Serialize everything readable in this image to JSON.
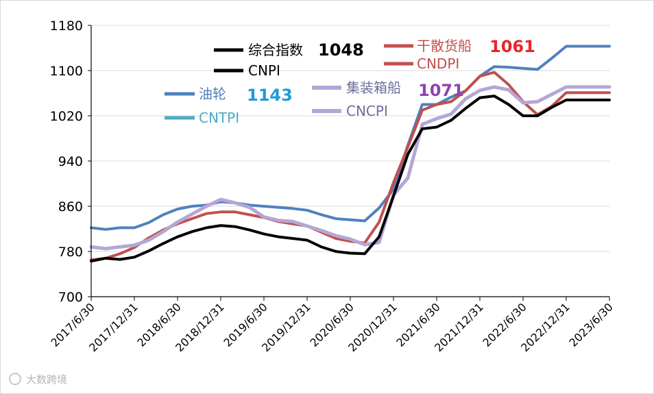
{
  "colors": {
    "composite": "#000000",
    "dry_bulk": "#c0504d",
    "tanker": "#4f81bd",
    "tanker_legend_line": "#4bacc6",
    "container": "#b4a7d6",
    "container_value": "#8e44ad",
    "tanker_value": "#1e9bd7",
    "dry_bulk_value": "#e8262a"
  },
  "watermark": "大数跨境",
  "chart_data": {
    "type": "line",
    "title": "",
    "xlabel": "",
    "ylabel": "",
    "ylim": [
      700,
      1180
    ],
    "yticks": [
      700,
      780,
      860,
      940,
      1020,
      1100,
      1180
    ],
    "xticks": [
      "2017/6/30",
      "2017/12/31",
      "2018/6/30",
      "2018/12/31",
      "2019/6/30",
      "2019/12/31",
      "2020/6/30",
      "2020/12/31",
      "2021/6/30",
      "2021/12/31",
      "2022/6/30",
      "2022/12/31",
      "2023/6/30"
    ],
    "x": [
      0,
      0.333,
      0.667,
      1,
      1.333,
      1.667,
      2,
      2.333,
      2.667,
      3,
      3.333,
      3.667,
      4,
      4.333,
      4.667,
      5,
      5.333,
      5.667,
      6,
      6.333,
      6.667,
      7,
      7.333,
      7.667,
      8,
      8.333,
      8.667,
      9,
      9.333,
      9.667,
      10,
      10.333,
      10.667,
      11,
      11.333,
      11.667,
      12
    ],
    "series": [
      {
        "name": "CNPI",
        "legend_label": "综合指数",
        "latest": "1048",
        "color_key": "composite",
        "values": [
          763,
          768,
          766,
          770,
          781,
          794,
          806,
          815,
          822,
          826,
          824,
          818,
          811,
          806,
          803,
          800,
          788,
          780,
          777,
          776,
          806,
          878,
          952,
          997,
          1000,
          1012,
          1033,
          1052,
          1055,
          1040,
          1020,
          1020,
          1035,
          1048,
          1048,
          1048,
          1048
        ]
      },
      {
        "name": "CNDPI",
        "legend_label": "干散货船",
        "latest": "1061",
        "color_key": "dry_bulk",
        "values": [
          765,
          768,
          776,
          787,
          804,
          818,
          829,
          838,
          847,
          850,
          850,
          845,
          840,
          833,
          829,
          825,
          814,
          803,
          798,
          795,
          832,
          902,
          965,
          1030,
          1040,
          1045,
          1064,
          1090,
          1097,
          1075,
          1045,
          1022,
          1037,
          1061,
          1061,
          1061,
          1061
        ]
      },
      {
        "name": "CNTPI",
        "legend_label": "油轮",
        "latest": "1143",
        "color_key": "tanker",
        "values": [
          822,
          819,
          822,
          822,
          831,
          845,
          855,
          860,
          862,
          868,
          866,
          862,
          860,
          858,
          856,
          853,
          845,
          838,
          836,
          834,
          857,
          890,
          968,
          1040,
          1040,
          1053,
          1064,
          1090,
          1107,
          1106,
          1104,
          1102,
          1122,
          1143,
          1143,
          1143,
          1143
        ]
      },
      {
        "name": "CNCPI",
        "legend_label": "集装箱船",
        "latest": "1071",
        "color_key": "container",
        "values": [
          788,
          785,
          788,
          791,
          800,
          815,
          832,
          846,
          860,
          872,
          866,
          858,
          841,
          835,
          833,
          825,
          817,
          808,
          802,
          792,
          796,
          880,
          910,
          1005,
          1015,
          1023,
          1050,
          1065,
          1071,
          1066,
          1043,
          1045,
          1058,
          1071,
          1071,
          1071,
          1071
        ]
      }
    ]
  }
}
